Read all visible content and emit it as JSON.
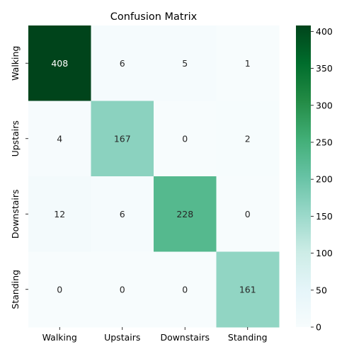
{
  "chart_data": {
    "type": "heatmap",
    "title": "Confusion Matrix",
    "xlabel": "",
    "ylabel": "",
    "x_categories": [
      "Walking",
      "Upstairs",
      "Downstairs",
      "Standing"
    ],
    "y_categories": [
      "Walking",
      "Upstairs",
      "Downstairs",
      "Standing"
    ],
    "values": [
      [
        408,
        6,
        5,
        1
      ],
      [
        4,
        167,
        0,
        2
      ],
      [
        12,
        6,
        228,
        0
      ],
      [
        0,
        0,
        0,
        161
      ]
    ],
    "colorbar": {
      "min": 0,
      "max": 408,
      "ticks": [
        0,
        50,
        100,
        150,
        200,
        250,
        300,
        350,
        400
      ],
      "colormap": "BuGn",
      "colors": [
        "#f7fcfd",
        "#e5f5f9",
        "#ccece6",
        "#99d8c9",
        "#66c2a4",
        "#41ae76",
        "#238b45",
        "#006d2c",
        "#00441b"
      ]
    }
  }
}
